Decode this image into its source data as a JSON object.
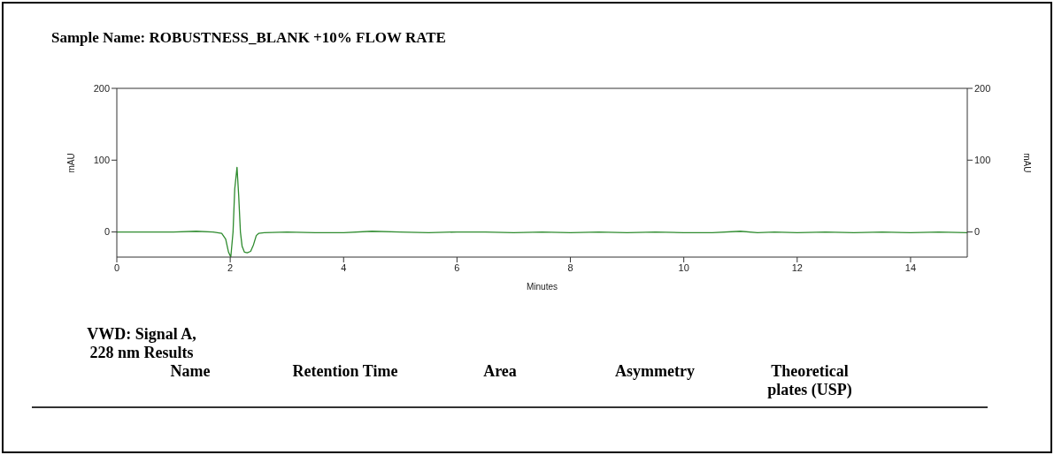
{
  "chart_data": {
    "type": "line",
    "title": "Sample Name: ROBUSTNESS_BLANK +10% FLOW RATE",
    "xlabel": "Minutes",
    "ylabel": "mAU",
    "y2label": "mAU",
    "annotations": [
      "VWD: Signal A, 228 nm Results",
      "Name",
      "Retention Time",
      "Area",
      "Asymmetry",
      "Theoretical plates (USP)"
    ],
    "series": [
      {
        "color": "#2e8b2e",
        "x": [
          0,
          0.5,
          1,
          1.4,
          1.7,
          1.85,
          1.92,
          1.97,
          2.01,
          2.05,
          2.08,
          2.12,
          2.15,
          2.18,
          2.21,
          2.25,
          2.3,
          2.36,
          2.41,
          2.46,
          2.5,
          2.6,
          3,
          3.5,
          4,
          4.5,
          5,
          5.5,
          6,
          6.5,
          7,
          7.5,
          8,
          8.5,
          9,
          9.5,
          10,
          10.5,
          11,
          11.3,
          11.6,
          12,
          12.5,
          13,
          13.5,
          14,
          14.5,
          15
        ],
        "values": [
          0,
          0,
          0,
          1,
          0,
          -2,
          -10,
          -28,
          -35,
          0,
          60,
          90,
          50,
          0,
          -20,
          -28,
          -29,
          -27,
          -18,
          -5,
          -2,
          -1,
          0,
          -1,
          -1,
          1,
          0,
          -1,
          0,
          0,
          -1,
          0,
          -1,
          0,
          -1,
          0,
          -1,
          -1,
          1,
          -1,
          0,
          -1,
          0,
          -1,
          0,
          -1,
          0,
          -1
        ]
      }
    ],
    "xlim": [
      0,
      15
    ],
    "xticks": [
      0,
      2,
      4,
      6,
      8,
      10,
      12,
      14
    ],
    "ylim": [
      -35,
      200
    ],
    "yticks": [
      0,
      100,
      200
    ],
    "y2lim": [
      -35,
      200
    ],
    "y2ticks": [
      0,
      100,
      200
    ],
    "grid": false,
    "legend": false,
    "marker": "none",
    "line_style": "solid"
  }
}
